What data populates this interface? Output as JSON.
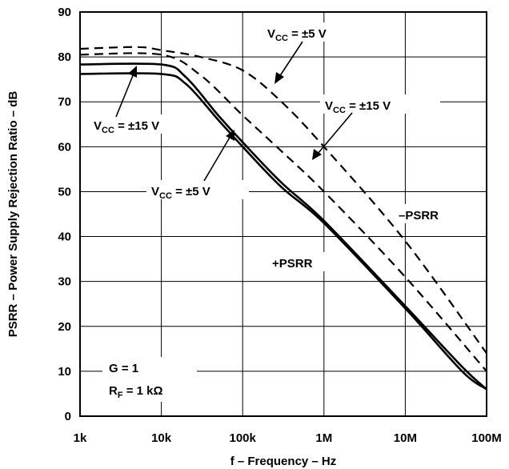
{
  "chart_data": {
    "type": "line",
    "title": "",
    "xlabel": "f – Frequency – Hz",
    "ylabel": "PSRR – Power Supply Rejection Ratio – dB",
    "x_scale": "log",
    "xlim": [
      1000,
      100000000
    ],
    "ylim": [
      0,
      90
    ],
    "grid": true,
    "x_ticks": [
      {
        "value": 1000,
        "label": "1k"
      },
      {
        "value": 10000,
        "label": "10k"
      },
      {
        "value": 100000,
        "label": "100k"
      },
      {
        "value": 1000000,
        "label": "1M"
      },
      {
        "value": 10000000,
        "label": "10M"
      },
      {
        "value": 100000000,
        "label": "100M"
      }
    ],
    "y_ticks": [
      0,
      10,
      20,
      30,
      40,
      50,
      60,
      70,
      80,
      90
    ],
    "series": [
      {
        "group": "+PSRR",
        "supply": "±15 V",
        "style": "solid",
        "x": [
          1000,
          10000,
          20000,
          50000,
          100000,
          300000,
          1000000,
          10000000,
          50000000,
          100000000
        ],
        "y": [
          76.2,
          76.2,
          74,
          66,
          60,
          51,
          43,
          24,
          10,
          6
        ]
      },
      {
        "group": "+PSRR",
        "supply": "±5 V",
        "style": "solid",
        "x": [
          1000,
          10000,
          20000,
          50000,
          100000,
          300000,
          1000000,
          10000000,
          50000000,
          100000000
        ],
        "y": [
          78.3,
          78.3,
          75.5,
          67,
          61,
          52,
          43.5,
          24.5,
          11,
          6
        ]
      },
      {
        "group": "-PSRR",
        "supply": "±15 V",
        "style": "dashed",
        "x": [
          1000,
          10000,
          30000,
          100000,
          300000,
          1000000,
          10000000,
          100000000
        ],
        "y": [
          80.5,
          80.5,
          76,
          67,
          59,
          50,
          31,
          10
        ]
      },
      {
        "group": "-PSRR",
        "supply": "±5 V",
        "style": "dashed",
        "x": [
          1000,
          5000,
          10000,
          30000,
          100000,
          300000,
          1000000,
          10000000,
          100000000
        ],
        "y": [
          81.8,
          82.2,
          81.5,
          80,
          77,
          70,
          60,
          39,
          14
        ]
      }
    ],
    "annotations": {
      "vcc_prefix": "V",
      "vcc_sub": "CC",
      "vcc_15": " = ±15 V",
      "vcc_5": " = ±5 V",
      "neg_psrr": "–PSRR",
      "pos_psrr": "+PSRR",
      "gain": "G = 1",
      "rf_prefix": "R",
      "rf_sub": "F",
      "rf_value": " = 1 kΩ"
    }
  }
}
